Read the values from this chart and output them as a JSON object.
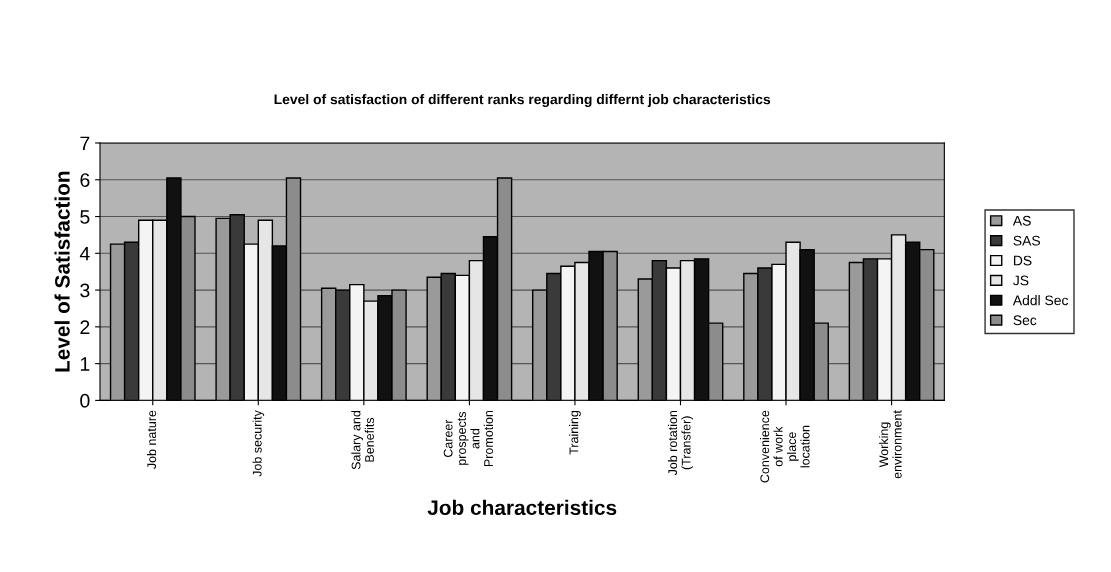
{
  "chart_data": {
    "type": "bar",
    "title": "Level of satisfaction of different ranks regarding differnt job characteristics",
    "xlabel": "Job characteristics",
    "ylabel": "Level of Satisfaction",
    "categories": [
      "Job nature",
      "Job security",
      "Salary and\nBenefits",
      "Career\nprospects\nand\nPromotion",
      "Training",
      "Job rotation\n(Transfer)",
      "Convenience\nof work\nplace\nlocation",
      "Working\nenvironment"
    ],
    "series": [
      {
        "name": "AS",
        "color": "#9a9a9a",
        "values": [
          4.25,
          4.95,
          3.05,
          3.35,
          3.0,
          3.3,
          3.45,
          3.75
        ]
      },
      {
        "name": "SAS",
        "color": "#3a3a3a",
        "values": [
          4.3,
          5.05,
          3.0,
          3.45,
          3.45,
          3.8,
          3.6,
          3.85
        ]
      },
      {
        "name": "DS",
        "color": "#f4f4f4",
        "values": [
          4.9,
          4.25,
          3.15,
          3.4,
          3.65,
          3.6,
          3.7,
          3.85
        ]
      },
      {
        "name": "JS",
        "color": "#e6e6e6",
        "values": [
          4.9,
          4.9,
          2.7,
          3.8,
          3.75,
          3.8,
          4.3,
          4.5
        ]
      },
      {
        "name": "Addl Sec",
        "color": "#111111",
        "values": [
          6.05,
          4.2,
          2.85,
          4.45,
          4.05,
          3.85,
          4.1,
          4.3
        ]
      },
      {
        "name": "Sec",
        "color": "#8c8c8c",
        "values": [
          5.0,
          6.05,
          3.0,
          6.05,
          4.05,
          2.1,
          2.1,
          4.1
        ]
      }
    ],
    "ylim": [
      0,
      7
    ],
    "yticks": [
      0,
      1,
      2,
      3,
      4,
      5,
      6,
      7
    ],
    "grid": "y",
    "legend": "right"
  }
}
